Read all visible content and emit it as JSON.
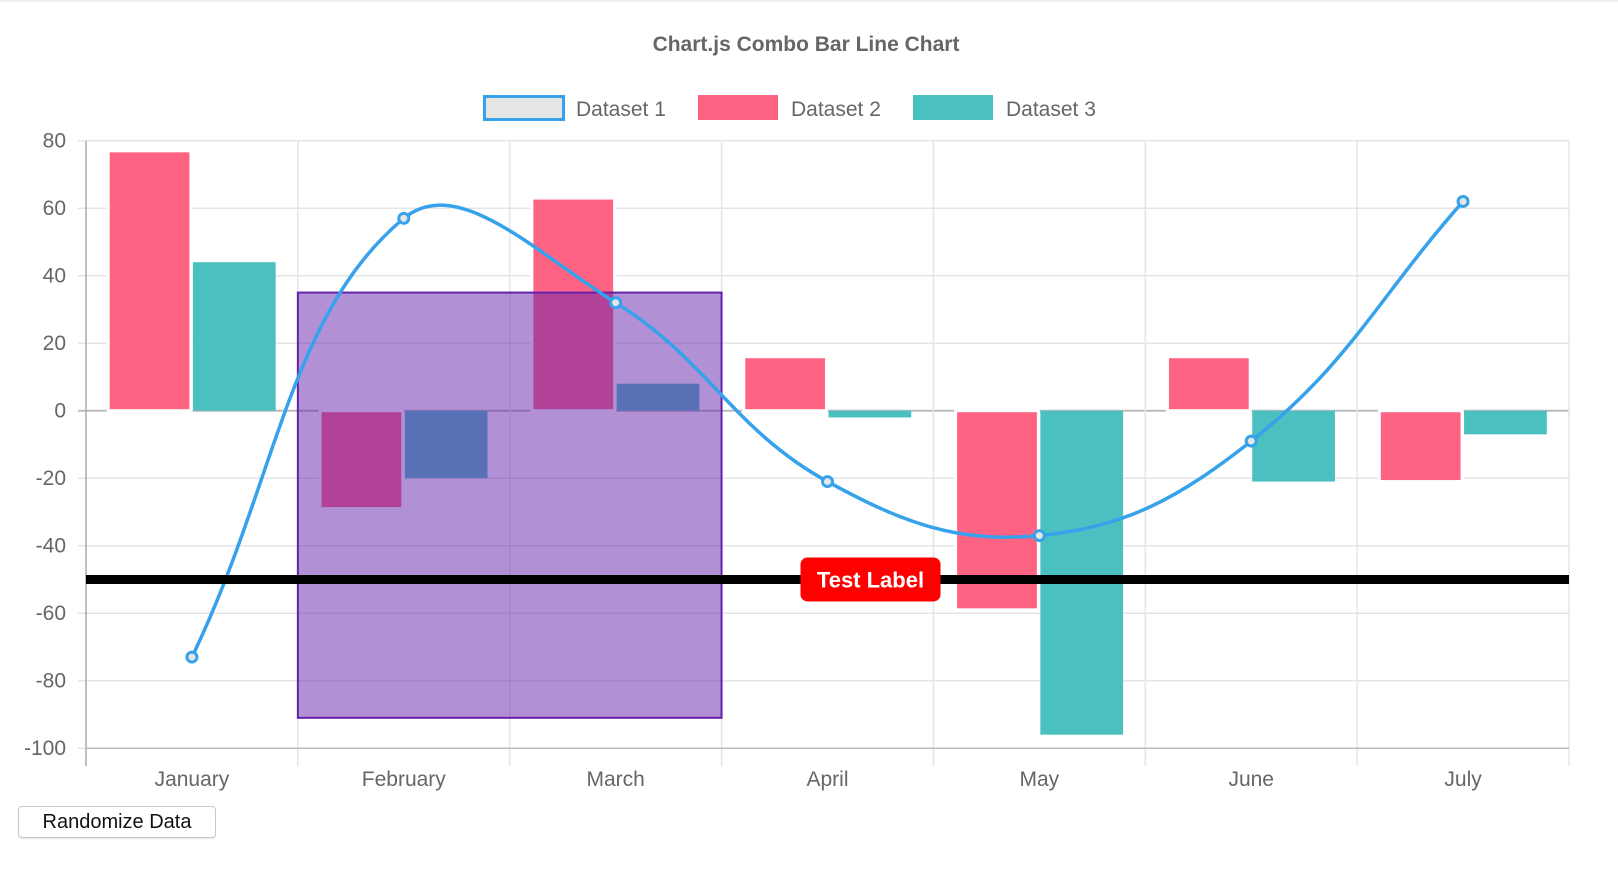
{
  "chart_data": {
    "type": "bar",
    "title": "Chart.js Combo Bar Line Chart",
    "categories": [
      "January",
      "February",
      "March",
      "April",
      "May",
      "June",
      "July"
    ],
    "ylim": [
      -100,
      80
    ],
    "yticks": [
      "80",
      "60",
      "40",
      "20",
      "0",
      "-20",
      "-40",
      "-60",
      "-80",
      "-100"
    ],
    "grid": true,
    "legend_position": "top",
    "series": [
      {
        "name": "Dataset 1",
        "type": "line",
        "color": "#36a2eb",
        "fill": "#e6e6e6",
        "values": [
          -73,
          57,
          32,
          -21,
          -37,
          -9,
          62
        ]
      },
      {
        "name": "Dataset 2",
        "type": "bar",
        "color": "#ff6384",
        "values": [
          77,
          -29,
          63,
          16,
          -59,
          16,
          -21
        ]
      },
      {
        "name": "Dataset 3",
        "type": "bar",
        "color": "#4bc0c0",
        "values": [
          44,
          -20,
          8,
          -2,
          -96,
          -21,
          -7
        ]
      }
    ],
    "annotations": {
      "box": {
        "x_from": "February",
        "x_to": "March",
        "y_max": 35,
        "y_min": -91,
        "fill": "rgba(101,33,171,0.5)",
        "border": "#6521ab"
      },
      "line": {
        "y": -50,
        "color": "#000000",
        "label": "Test Label",
        "label_color": "#ff0000"
      }
    }
  },
  "controls": {
    "randomize_label": "Randomize Data"
  }
}
